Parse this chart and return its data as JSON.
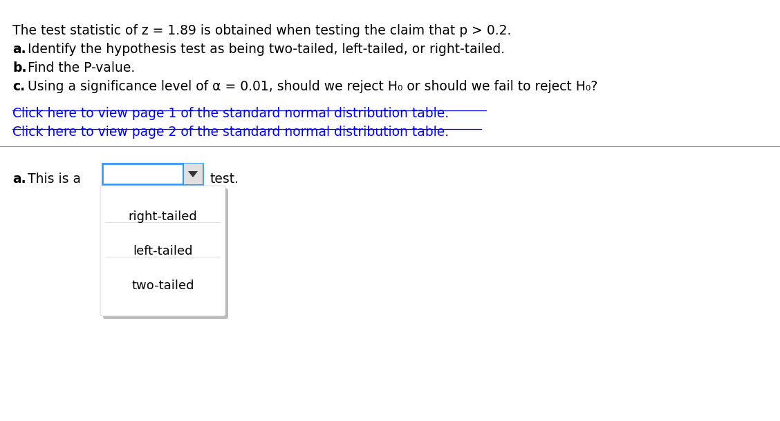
{
  "background_color": "#ffffff",
  "line1": "The test statistic of z = 1.89 is obtained when testing the claim that p > 0.2.",
  "line2_bold": "a.",
  "line2_rest": " Identify the hypothesis test as being two-tailed, left-tailed, or right-tailed.",
  "line3_bold": "b.",
  "line3_rest": " Find the P-value.",
  "line4_bold": "c.",
  "line4_rest": " Using a significance level of α = 0.01, should we reject H₀ or should we fail to reject H₀?",
  "link1": "Click here to view page 1 of the standard normal distribution table.",
  "link2": "Click here to view page 2 of the standard normal distribution table.",
  "link_color": "#0000ff",
  "answer_label_bold": "a.",
  "answer_label_rest": " This is a",
  "answer_suffix": "test.",
  "dropdown_options": [
    "right-tailed",
    "left-tailed",
    "two-tailed"
  ],
  "dropdown_box_color": "#3399ff",
  "dropdown_bg": "#ffffff",
  "dropdown_shadow": "#bbbbbb",
  "separator_color": "#888888",
  "text_color": "#000000",
  "font_size_main": 13.5,
  "font_size_link": 13.5,
  "font_size_answer": 13.5,
  "font_size_dropdown": 13.0
}
